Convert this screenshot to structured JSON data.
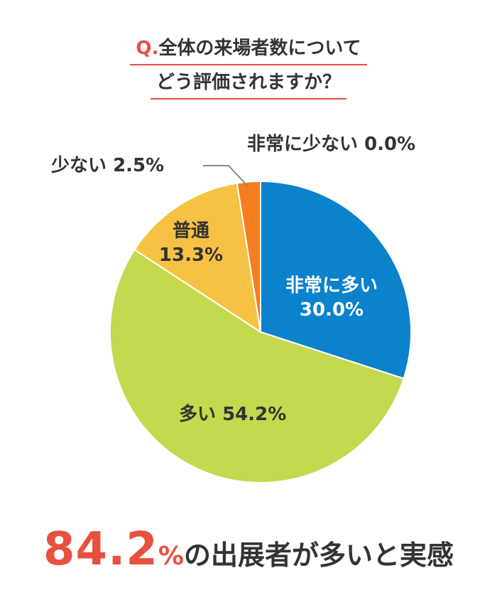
{
  "question": {
    "prefix": "Q.",
    "line1": "全体の来場者数について",
    "line2": "どう評価されますか？"
  },
  "summary": {
    "value": "84.2",
    "unit": "%",
    "text": "の出展者が多いと実感"
  },
  "chart_data": {
    "type": "pie",
    "title": "Q.全体の来場者数についてどう評価されますか？",
    "categories": [
      "非常に多い",
      "多い",
      "普通",
      "少ない",
      "非常に少ない"
    ],
    "values": [
      30.0,
      54.2,
      13.3,
      2.5,
      0.0
    ],
    "value_labels": [
      "30.0%",
      "54.2%",
      "13.3%",
      "2.5%",
      "0.0%"
    ],
    "colors": [
      "#0a82cc",
      "#c4d94d",
      "#f7c243",
      "#f47e20",
      "#d94f2b"
    ],
    "start": "top, clockwise"
  }
}
